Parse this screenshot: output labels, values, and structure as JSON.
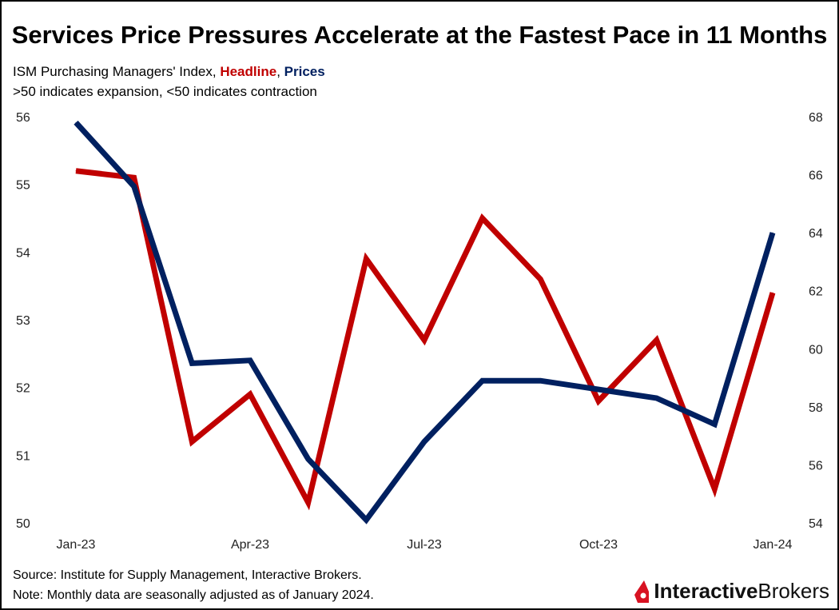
{
  "chart_data": {
    "type": "line",
    "title": "Services Price Pressures Accelerate at the Fastest Pace in 11 Months",
    "subtitle_prefix": "ISM Purchasing Managers' Index, ",
    "subtitle_sep": ", ",
    "subtitle2": ">50 indicates expansion, <50 indicates contraction",
    "x": [
      "Jan-23",
      "Feb-23",
      "Mar-23",
      "Apr-23",
      "May-23",
      "Jun-23",
      "Jul-23",
      "Aug-23",
      "Sep-23",
      "Oct-23",
      "Nov-23",
      "Dec-23",
      "Jan-24"
    ],
    "xtick_labels": [
      "Jan-23",
      "Apr-23",
      "Jul-23",
      "Oct-23",
      "Jan-24"
    ],
    "y_left": {
      "range": [
        50,
        56
      ],
      "ticks": [
        "50",
        "51",
        "52",
        "53",
        "54",
        "55",
        "56"
      ]
    },
    "y_right": {
      "range": [
        54,
        68
      ],
      "ticks": [
        "54",
        "56",
        "58",
        "60",
        "62",
        "64",
        "66",
        "68"
      ]
    },
    "series": [
      {
        "name": "Headline",
        "axis": "left",
        "color": "#C00000",
        "values": [
          55.2,
          55.1,
          51.2,
          51.9,
          50.3,
          53.9,
          52.7,
          54.5,
          53.6,
          51.8,
          52.7,
          50.5,
          53.4
        ]
      },
      {
        "name": "Prices",
        "axis": "right",
        "color": "#002060",
        "values": [
          67.8,
          65.6,
          59.5,
          59.6,
          56.2,
          54.1,
          56.8,
          58.9,
          58.9,
          58.6,
          58.3,
          57.4,
          64.0
        ]
      }
    ],
    "grid": false,
    "legend": "none"
  },
  "footer": {
    "source": "Source: Institute for Supply Management, Interactive Brokers.",
    "note": "Note: Monthly data are seasonally adjusted as of January 2024."
  },
  "logo": {
    "text_bold": "Interactive",
    "text_regular": "Brokers"
  }
}
